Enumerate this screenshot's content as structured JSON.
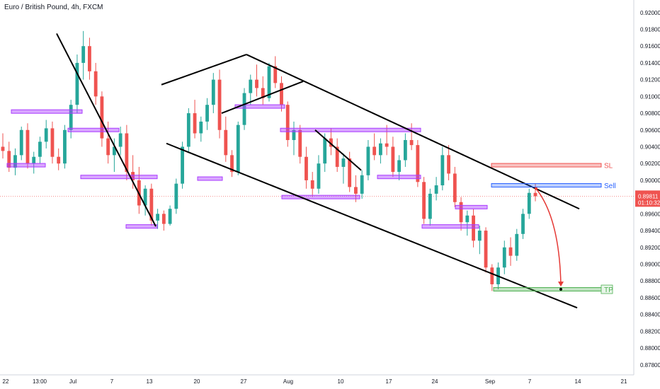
{
  "chart_data": {
    "type": "candlestick",
    "title": "Euro / British Pound, 4h, FXCM",
    "y_ticks": [
      "0.92000",
      "0.91800",
      "0.91600",
      "0.91400",
      "0.91200",
      "0.91000",
      "0.90800",
      "0.90600",
      "0.90400",
      "0.90200",
      "0.90000",
      "0.89600",
      "0.89400",
      "0.89200",
      "0.89000",
      "0.88800",
      "0.88600",
      "0.88400",
      "0.88200",
      "0.88000",
      "0.87800"
    ],
    "x_ticks": [
      "22",
      "13:00",
      "Jul",
      "7",
      "13",
      "20",
      "27",
      "Aug",
      "10",
      "17",
      "24",
      "Sep",
      "7",
      "14",
      "21"
    ],
    "ylim": [
      0.8768,
      0.9215
    ],
    "current_price": {
      "value": "0.89811",
      "countdown": "01:10:32",
      "color": "#ef5350"
    },
    "zones": [
      {
        "label": "SL",
        "price": 0.9018,
        "color": "#ef5350"
      },
      {
        "label": "Sell",
        "price": 0.8994,
        "color": "#2962ff"
      },
      {
        "label": "TP",
        "price": 0.887,
        "color": "#4caf50"
      }
    ],
    "candles": [
      [
        0.904,
        0.9056,
        0.9026,
        0.9035
      ],
      [
        0.9035,
        0.9046,
        0.901,
        0.9015
      ],
      [
        0.9015,
        0.9038,
        0.9006,
        0.903
      ],
      [
        0.903,
        0.9064,
        0.9024,
        0.906
      ],
      [
        0.906,
        0.9068,
        0.9014,
        0.902
      ],
      [
        0.902,
        0.9034,
        0.9008,
        0.9028
      ],
      [
        0.9028,
        0.9052,
        0.902,
        0.9046
      ],
      [
        0.9046,
        0.9072,
        0.9038,
        0.9062
      ],
      [
        0.9062,
        0.907,
        0.902,
        0.9028
      ],
      [
        0.9028,
        0.9038,
        0.9012,
        0.902
      ],
      [
        0.902,
        0.9066,
        0.9014,
        0.906
      ],
      [
        0.906,
        0.9096,
        0.905,
        0.909
      ],
      [
        0.909,
        0.915,
        0.908,
        0.914
      ],
      [
        0.914,
        0.9178,
        0.912,
        0.916
      ],
      [
        0.916,
        0.917,
        0.912,
        0.913
      ],
      [
        0.913,
        0.914,
        0.909,
        0.91
      ],
      [
        0.91,
        0.9106,
        0.904,
        0.905
      ],
      [
        0.905,
        0.907,
        0.902,
        0.903
      ],
      [
        0.903,
        0.905,
        0.901,
        0.904
      ],
      [
        0.904,
        0.9064,
        0.903,
        0.9056
      ],
      [
        0.9056,
        0.9066,
        0.9,
        0.901
      ],
      [
        0.901,
        0.903,
        0.899,
        0.9
      ],
      [
        0.9,
        0.9016,
        0.896,
        0.897
      ],
      [
        0.897,
        0.8994,
        0.8958,
        0.899
      ],
      [
        0.899,
        0.8996,
        0.8946,
        0.8952
      ],
      [
        0.8952,
        0.8966,
        0.8942,
        0.896
      ],
      [
        0.896,
        0.8964,
        0.894,
        0.8948
      ],
      [
        0.8948,
        0.897,
        0.8946,
        0.8966
      ],
      [
        0.8966,
        0.9002,
        0.896,
        0.8996
      ],
      [
        0.8996,
        0.9046,
        0.899,
        0.904
      ],
      [
        0.904,
        0.9086,
        0.9034,
        0.908
      ],
      [
        0.908,
        0.9096,
        0.905,
        0.9056
      ],
      [
        0.9056,
        0.9076,
        0.9046,
        0.907
      ],
      [
        0.907,
        0.9098,
        0.906,
        0.909
      ],
      [
        0.909,
        0.9128,
        0.908,
        0.912
      ],
      [
        0.912,
        0.9132,
        0.905,
        0.906
      ],
      [
        0.906,
        0.9076,
        0.9022,
        0.903
      ],
      [
        0.903,
        0.9036,
        0.9004,
        0.901
      ],
      [
        0.901,
        0.907,
        0.9006,
        0.9066
      ],
      [
        0.9066,
        0.911,
        0.906,
        0.9104
      ],
      [
        0.9104,
        0.9126,
        0.909,
        0.912
      ],
      [
        0.912,
        0.9138,
        0.91,
        0.911
      ],
      [
        0.911,
        0.9124,
        0.909,
        0.9098
      ],
      [
        0.9098,
        0.914,
        0.9094,
        0.9136
      ],
      [
        0.9136,
        0.9148,
        0.911,
        0.9116
      ],
      [
        0.9116,
        0.9124,
        0.9082,
        0.909
      ],
      [
        0.909,
        0.9094,
        0.904,
        0.9048
      ],
      [
        0.9048,
        0.907,
        0.903,
        0.906
      ],
      [
        0.906,
        0.9066,
        0.902,
        0.9028
      ],
      [
        0.9028,
        0.904,
        0.899,
        0.9
      ],
      [
        0.9,
        0.901,
        0.898,
        0.899
      ],
      [
        0.899,
        0.903,
        0.8984,
        0.902
      ],
      [
        0.902,
        0.9056,
        0.901,
        0.905
      ],
      [
        0.905,
        0.9062,
        0.903,
        0.904
      ],
      [
        0.904,
        0.905,
        0.901,
        0.9016
      ],
      [
        0.9016,
        0.9032,
        0.8996,
        0.9026
      ],
      [
        0.9026,
        0.9034,
        0.8986,
        0.8992
      ],
      [
        0.8992,
        0.9006,
        0.8974,
        0.8984
      ],
      [
        0.8984,
        0.9012,
        0.8978,
        0.9006
      ],
      [
        0.9006,
        0.9048,
        0.9,
        0.904
      ],
      [
        0.904,
        0.9056,
        0.9024,
        0.903
      ],
      [
        0.903,
        0.905,
        0.902,
        0.9044
      ],
      [
        0.9044,
        0.9066,
        0.903,
        0.904
      ],
      [
        0.904,
        0.9052,
        0.9004,
        0.901
      ],
      [
        0.901,
        0.903,
        0.9,
        0.9024
      ],
      [
        0.9024,
        0.9056,
        0.9016,
        0.9048
      ],
      [
        0.9048,
        0.9068,
        0.9036,
        0.9042
      ],
      [
        0.9042,
        0.9048,
        0.8992,
        0.8998
      ],
      [
        0.8998,
        0.9004,
        0.8948,
        0.8954
      ],
      [
        0.8954,
        0.899,
        0.8946,
        0.8984
      ],
      [
        0.8984,
        0.9004,
        0.8976,
        0.8994
      ],
      [
        0.8994,
        0.904,
        0.8988,
        0.903
      ],
      [
        0.903,
        0.9042,
        0.9,
        0.9008
      ],
      [
        0.9008,
        0.9016,
        0.8968,
        0.8974
      ],
      [
        0.8974,
        0.898,
        0.894,
        0.895
      ],
      [
        0.895,
        0.8964,
        0.8934,
        0.8958
      ],
      [
        0.8958,
        0.8966,
        0.892,
        0.8928
      ],
      [
        0.8928,
        0.8946,
        0.8912,
        0.894
      ],
      [
        0.894,
        0.8944,
        0.889,
        0.8896
      ],
      [
        0.8896,
        0.89,
        0.8868,
        0.8876
      ],
      [
        0.8876,
        0.8902,
        0.887,
        0.8896
      ],
      [
        0.8896,
        0.8928,
        0.8888,
        0.892
      ],
      [
        0.892,
        0.8932,
        0.8898,
        0.891
      ],
      [
        0.891,
        0.8942,
        0.8904,
        0.8936
      ],
      [
        0.8936,
        0.8966,
        0.893,
        0.896
      ],
      [
        0.896,
        0.899,
        0.8954,
        0.8985
      ],
      [
        0.8985,
        0.8996,
        0.8975,
        0.8981
      ]
    ]
  }
}
